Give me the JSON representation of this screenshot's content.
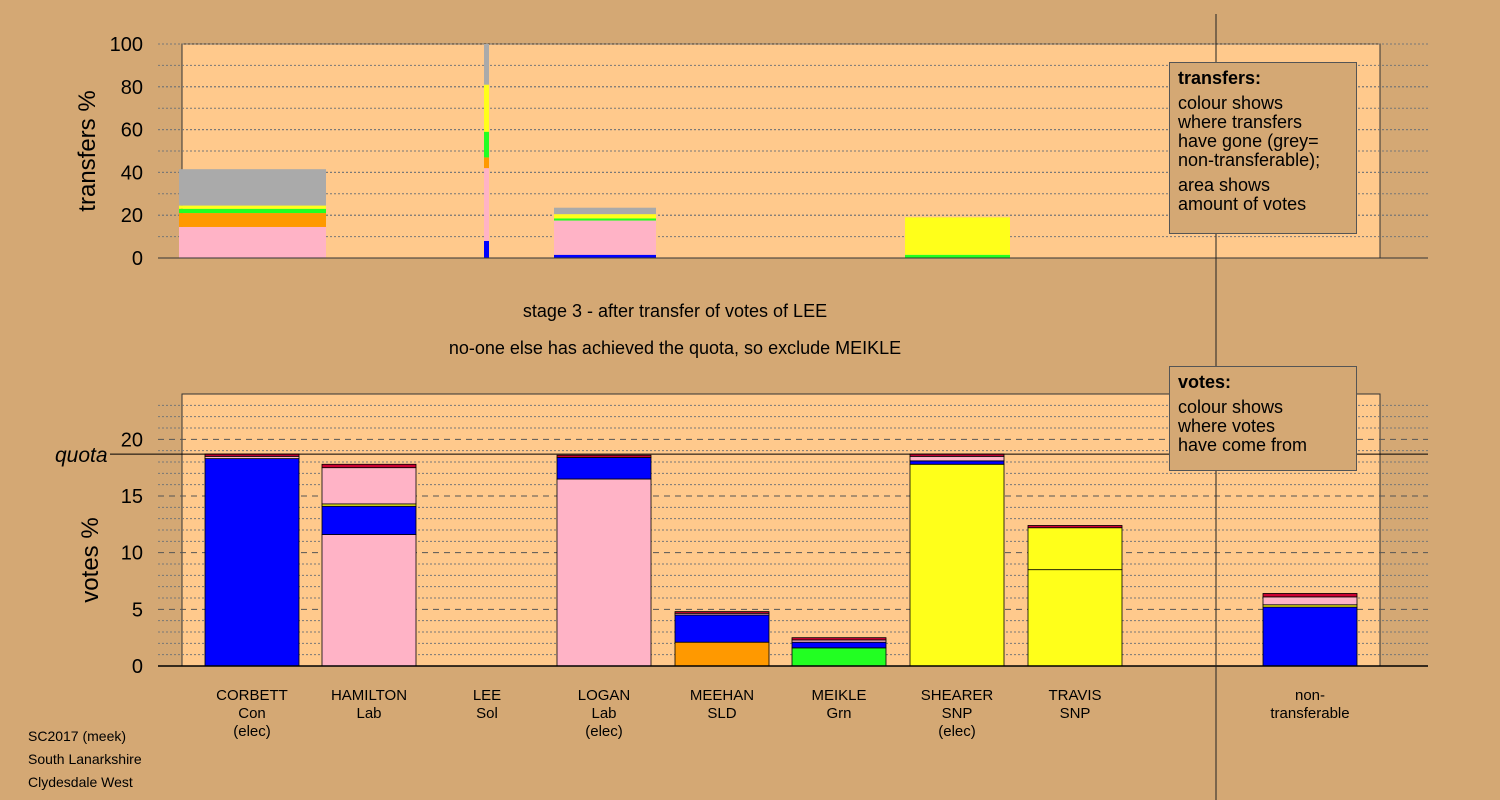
{
  "colors": {
    "background": "#d4a874",
    "plot_background": "#ffc98c",
    "Con": "#0000ff",
    "Lab": "#ffb3c6",
    "SNP": "#ffff1a",
    "SLD": "#ff9900",
    "Grn": "#22ff22",
    "Sol": "#cc0033",
    "nontransferable": "#aaaaaa"
  },
  "captions": {
    "stage": "stage 3 - after transfer of votes of LEE",
    "action": "no-one else has achieved the quota, so exclude MEIKLE"
  },
  "transfers_legend": {
    "title": "transfers:",
    "lines": [
      "colour shows",
      "where transfers",
      "have gone (grey=",
      "non-transferable);"
    ],
    "lines2": [
      "area shows",
      "amount of votes"
    ]
  },
  "votes_legend": {
    "title": "votes:",
    "lines": [
      "colour shows",
      "where votes",
      "have come from"
    ]
  },
  "footer": {
    "line1": "SC2017 (meek)",
    "line2": "South Lanarkshire",
    "line3": "Clydesdale West"
  },
  "chart_data": [
    {
      "type": "bar",
      "ylabel": "transfers %",
      "ylim": [
        0,
        100
      ],
      "yticks": [
        0,
        20,
        40,
        60,
        80,
        100
      ],
      "stacked": true,
      "bars": [
        {
          "candidate": "CORBETT",
          "segments": [
            {
              "color_key": "Lab",
              "value": 14.5
            },
            {
              "color_key": "SLD",
              "value": 6.5
            },
            {
              "color_key": "Grn",
              "value": 2
            },
            {
              "color_key": "SNP",
              "value": 1.5
            },
            {
              "color_key": "nontransferable",
              "value": 17
            }
          ]
        },
        {
          "candidate": "LEE",
          "narrow": true,
          "segments": [
            {
              "color_key": "Con",
              "value": 8
            },
            {
              "color_key": "Lab",
              "value": 34
            },
            {
              "color_key": "SLD",
              "value": 5
            },
            {
              "color_key": "Grn",
              "value": 12
            },
            {
              "color_key": "SNP",
              "value": 22
            },
            {
              "color_key": "nontransferable",
              "value": 19
            }
          ]
        },
        {
          "candidate": "LOGAN",
          "segments": [
            {
              "color_key": "Con",
              "value": 1.5
            },
            {
              "color_key": "Lab",
              "value": 16
            },
            {
              "color_key": "Grn",
              "value": 1
            },
            {
              "color_key": "SNP",
              "value": 2
            },
            {
              "color_key": "nontransferable",
              "value": 3
            }
          ]
        },
        {
          "candidate": "SHEARER",
          "segments": [
            {
              "color_key": "Grn",
              "value": 1.5
            },
            {
              "color_key": "SNP",
              "value": 17.5
            }
          ]
        }
      ]
    },
    {
      "type": "bar",
      "ylabel": "votes %",
      "ylim": [
        0,
        24
      ],
      "yticks": [
        0,
        5,
        10,
        15,
        20
      ],
      "quota": 18.7,
      "quota_label": "quota",
      "stacked": true,
      "bars": [
        {
          "name": "CORBETT",
          "party": "Con",
          "note": "(elec)",
          "segments": [
            {
              "color_key": "Con",
              "value": 18.3
            },
            {
              "color_key": "Lab",
              "value": 0.2
            },
            {
              "color_key": "Sol",
              "value": 0.2
            }
          ]
        },
        {
          "name": "HAMILTON",
          "party": "Lab",
          "note": "",
          "segments": [
            {
              "color_key": "Lab",
              "value": 11.6
            },
            {
              "color_key": "Con",
              "value": 2.5
            },
            {
              "color_key": "SNP",
              "value": 0.2
            },
            {
              "color_key": "Lab",
              "value": 3.2
            },
            {
              "color_key": "Sol",
              "value": 0.3
            }
          ]
        },
        {
          "name": "LEE",
          "party": "Sol",
          "note": "",
          "segments": []
        },
        {
          "name": "LOGAN",
          "party": "Lab",
          "note": "(elec)",
          "segments": [
            {
              "color_key": "Lab",
              "value": 16.5
            },
            {
              "color_key": "Con",
              "value": 1.9
            },
            {
              "color_key": "Sol",
              "value": 0.2
            }
          ]
        },
        {
          "name": "MEEHAN",
          "party": "SLD",
          "note": "",
          "segments": [
            {
              "color_key": "SLD",
              "value": 2.1
            },
            {
              "color_key": "Con",
              "value": 2.4
            },
            {
              "color_key": "Lab",
              "value": 0.15
            },
            {
              "color_key": "Sol",
              "value": 0.15
            }
          ]
        },
        {
          "name": "MEIKLE",
          "party": "Grn",
          "note": "",
          "segments": [
            {
              "color_key": "Grn",
              "value": 1.6
            },
            {
              "color_key": "Con",
              "value": 0.5
            },
            {
              "color_key": "Lab",
              "value": 0.2
            },
            {
              "color_key": "Sol",
              "value": 0.2
            }
          ]
        },
        {
          "name": "SHEARER",
          "party": "SNP",
          "note": "(elec)",
          "segments": [
            {
              "color_key": "SNP",
              "value": 17.8
            },
            {
              "color_key": "Con",
              "value": 0.3
            },
            {
              "color_key": "Lab",
              "value": 0.4
            },
            {
              "color_key": "Sol",
              "value": 0.2
            }
          ]
        },
        {
          "name": "TRAVIS",
          "party": "SNP",
          "note": "",
          "segments": [
            {
              "color_key": "SNP",
              "value": 8.5
            },
            {
              "color_key": "SNP",
              "value": 3.7
            },
            {
              "color_key": "Sol",
              "value": 0.2
            }
          ]
        },
        {
          "name": "non-",
          "party": "transferable",
          "note": "",
          "segments": [
            {
              "color_key": "Con",
              "value": 5.2
            },
            {
              "color_key": "SNP",
              "value": 0.2
            },
            {
              "color_key": "Lab",
              "value": 0.7
            },
            {
              "color_key": "Sol",
              "value": 0.3
            }
          ]
        }
      ]
    }
  ]
}
